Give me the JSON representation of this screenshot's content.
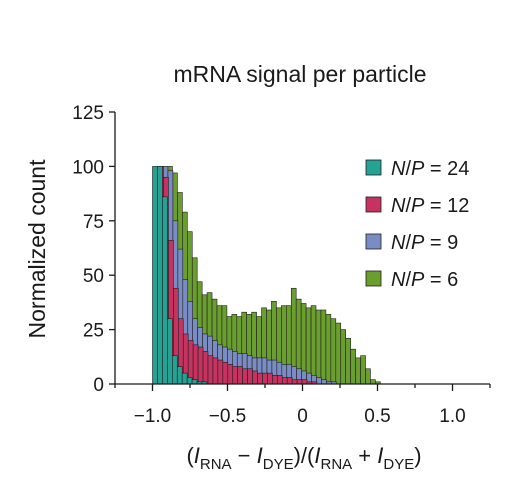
{
  "chart_data": {
    "type": "bar",
    "title": "mRNA signal per particle",
    "ylabel": "Normalized count",
    "xlabel": {
      "segments": [
        {
          "text": "(",
          "sub": false,
          "italic": false
        },
        {
          "text": "I",
          "sub": false,
          "italic": true
        },
        {
          "text": "RNA",
          "sub": true,
          "italic": false
        },
        {
          "text": " − ",
          "sub": false,
          "italic": false
        },
        {
          "text": "I",
          "sub": false,
          "italic": true
        },
        {
          "text": "DYE",
          "sub": true,
          "italic": false
        },
        {
          "text": ")/(",
          "sub": false,
          "italic": false
        },
        {
          "text": "I",
          "sub": false,
          "italic": true
        },
        {
          "text": "RNA",
          "sub": true,
          "italic": false
        },
        {
          "text": " + ",
          "sub": false,
          "italic": false
        },
        {
          "text": "I",
          "sub": false,
          "italic": true
        },
        {
          "text": "DYE",
          "sub": true,
          "italic": false
        },
        {
          "text": ")",
          "sub": false,
          "italic": false
        }
      ]
    },
    "xlim": [
      -1.25,
      1.25
    ],
    "ylim": [
      0,
      125
    ],
    "xticks": [
      -1.0,
      -0.5,
      0,
      0.5,
      1.0
    ],
    "xtick_labels": [
      "−1.0",
      "−0.5",
      "0",
      "0.5",
      "1.0"
    ],
    "yticks": [
      0,
      25,
      50,
      75,
      100,
      125
    ],
    "ytick_labels": [
      "0",
      "25",
      "50",
      "75",
      "100",
      "125"
    ],
    "grid": false,
    "legend_position": "right",
    "bin_width": 0.033,
    "series": [
      {
        "name": "N/P = 6",
        "color": "#6a9e2f",
        "x_start": -0.9,
        "values": [
          100,
          97,
          88,
          79,
          70,
          58,
          47,
          41,
          42,
          39,
          36,
          36,
          31,
          32,
          31,
          33,
          32,
          33,
          31,
          35,
          34,
          38,
          35,
          36,
          36,
          44,
          39,
          37,
          35,
          36,
          34,
          34,
          32,
          30,
          28,
          25,
          21,
          16,
          12,
          13,
          7,
          2,
          1
        ]
      },
      {
        "name": "N/P = 9",
        "color": "#7a8cc4",
        "x_start": -0.93,
        "values": [
          100,
          98,
          75,
          62,
          48,
          38,
          30,
          26,
          23,
          22,
          20,
          18,
          17,
          16,
          15,
          14,
          14,
          13,
          12,
          12,
          12,
          11,
          11,
          10,
          9,
          9,
          8,
          7,
          6,
          5,
          4,
          3,
          2,
          1,
          1
        ]
      },
      {
        "name": "N/P = 12",
        "color": "#c73360",
        "x_start": -0.96,
        "values": [
          100,
          95,
          66,
          44,
          30,
          23,
          20,
          18,
          17,
          15,
          13,
          12,
          11,
          10,
          9,
          8,
          8,
          7,
          7,
          6,
          5,
          5,
          5,
          4,
          4,
          3,
          3,
          2,
          2,
          2,
          1,
          1
        ]
      },
      {
        "name": "N/P = 24",
        "color": "#26a294",
        "x_start": -1.0,
        "values": [
          100,
          100,
          86,
          30,
          13,
          8,
          5,
          3,
          2,
          1,
          1
        ]
      }
    ],
    "legend_order": [
      "N/P = 24",
      "N/P = 12",
      "N/P = 9",
      "N/P = 6"
    ]
  }
}
